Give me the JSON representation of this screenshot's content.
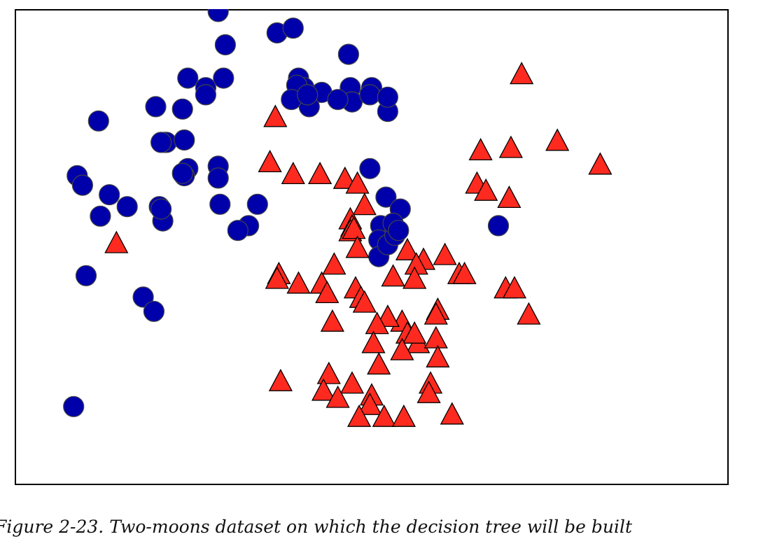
{
  "caption": "Figure 2-23. Two-moons dataset on which the decision tree will be built",
  "chart_data": {
    "type": "scatter",
    "title": "",
    "xlabel": "",
    "ylabel": "",
    "xlim": [
      -1.5,
      2.5
    ],
    "ylim": [
      -0.75,
      1.25
    ],
    "grid": false,
    "axes_ticks_visible": false,
    "marker_edge_color": "#444444",
    "series": [
      {
        "class": 0,
        "marker": "circle",
        "color": "#0000aa",
        "points": [
          [
            -0.36,
            1.24
          ],
          [
            -0.03,
            1.15
          ],
          [
            0.06,
            1.17
          ],
          [
            -0.32,
            1.1
          ],
          [
            0.37,
            1.06
          ],
          [
            -0.53,
            0.96
          ],
          [
            -0.33,
            0.96
          ],
          [
            0.09,
            0.96
          ],
          [
            0.38,
            0.92
          ],
          [
            0.12,
            0.92
          ],
          [
            0.08,
            0.93
          ],
          [
            0.22,
            0.9
          ],
          [
            0.5,
            0.92
          ],
          [
            -0.43,
            0.92
          ],
          [
            -0.43,
            0.89
          ],
          [
            0.15,
            0.84
          ],
          [
            0.39,
            0.86
          ],
          [
            0.49,
            0.89
          ],
          [
            0.59,
            0.82
          ],
          [
            0.59,
            0.88
          ],
          [
            0.05,
            0.87
          ],
          [
            0.14,
            0.89
          ],
          [
            0.31,
            0.87
          ],
          [
            -0.71,
            0.84
          ],
          [
            -0.56,
            0.83
          ],
          [
            -1.03,
            0.78
          ],
          [
            -0.66,
            0.69
          ],
          [
            -0.65,
            0.69
          ],
          [
            -0.68,
            0.69
          ],
          [
            -0.55,
            0.7
          ],
          [
            -0.53,
            0.58
          ],
          [
            -0.55,
            0.55
          ],
          [
            -0.56,
            0.56
          ],
          [
            -0.36,
            0.59
          ],
          [
            -1.15,
            0.55
          ],
          [
            -1.12,
            0.51
          ],
          [
            -0.97,
            0.47
          ],
          [
            -0.36,
            0.54
          ],
          [
            0.49,
            0.58
          ],
          [
            0.58,
            0.46
          ],
          [
            0.66,
            0.41
          ],
          [
            -0.35,
            0.43
          ],
          [
            -0.14,
            0.43
          ],
          [
            -0.87,
            0.42
          ],
          [
            -0.69,
            0.42
          ],
          [
            -0.67,
            0.36
          ],
          [
            -0.68,
            0.41
          ],
          [
            0.55,
            0.34
          ],
          [
            0.63,
            0.31
          ],
          [
            0.54,
            0.28
          ],
          [
            1.21,
            0.34
          ],
          [
            -1.1,
            0.13
          ],
          [
            -0.78,
            0.04
          ],
          [
            -0.72,
            -0.02
          ],
          [
            -1.17,
            -0.42
          ],
          [
            0.54,
            0.21
          ],
          [
            0.59,
            0.26
          ],
          [
            0.63,
            0.3
          ],
          [
            0.62,
            0.35
          ],
          [
            0.65,
            0.32
          ],
          [
            -0.19,
            0.34
          ],
          [
            -0.25,
            0.32
          ],
          [
            -1.02,
            0.38
          ]
        ]
      },
      {
        "class": 1,
        "marker": "triangle",
        "color": "#ff2a1f",
        "points": [
          [
            -0.04,
            0.79
          ],
          [
            1.34,
            0.97
          ],
          [
            1.54,
            0.69
          ],
          [
            1.28,
            0.66
          ],
          [
            1.11,
            0.65
          ],
          [
            1.78,
            0.59
          ],
          [
            -0.07,
            0.6
          ],
          [
            0.06,
            0.55
          ],
          [
            0.21,
            0.55
          ],
          [
            0.35,
            0.53
          ],
          [
            0.42,
            0.51
          ],
          [
            1.09,
            0.51
          ],
          [
            1.14,
            0.48
          ],
          [
            0.46,
            0.42
          ],
          [
            0.38,
            0.36
          ],
          [
            0.39,
            0.33
          ],
          [
            0.38,
            0.31
          ],
          [
            0.4,
            0.32
          ],
          [
            0.29,
            0.17
          ],
          [
            0.42,
            0.24
          ],
          [
            -0.93,
            0.26
          ],
          [
            0.7,
            0.23
          ],
          [
            0.91,
            0.21
          ],
          [
            0.79,
            0.19
          ],
          [
            0.75,
            0.17
          ],
          [
            0.99,
            0.13
          ],
          [
            1.02,
            0.13
          ],
          [
            -0.02,
            0.13
          ],
          [
            -0.03,
            0.11
          ],
          [
            0.62,
            0.12
          ],
          [
            0.74,
            0.11
          ],
          [
            0.22,
            0.09
          ],
          [
            0.09,
            0.09
          ],
          [
            1.25,
            0.07
          ],
          [
            1.3,
            0.07
          ],
          [
            0.25,
            0.05
          ],
          [
            0.41,
            0.07
          ],
          [
            0.44,
            0.03
          ],
          [
            0.46,
            0.01
          ],
          [
            0.87,
            -0.02
          ],
          [
            1.38,
            -0.04
          ],
          [
            0.86,
            -0.04
          ],
          [
            0.67,
            -0.07
          ],
          [
            0.59,
            -0.05
          ],
          [
            0.28,
            -0.07
          ],
          [
            0.53,
            -0.08
          ],
          [
            0.7,
            -0.12
          ],
          [
            0.51,
            -0.16
          ],
          [
            0.76,
            -0.16
          ],
          [
            0.74,
            -0.12
          ],
          [
            0.86,
            -0.14
          ],
          [
            0.67,
            -0.19
          ],
          [
            0.87,
            -0.22
          ],
          [
            0.54,
            -0.25
          ],
          [
            0.83,
            -0.33
          ],
          [
            0.39,
            -0.33
          ],
          [
            -0.01,
            -0.32
          ],
          [
            0.26,
            -0.29
          ],
          [
            0.82,
            -0.37
          ],
          [
            0.23,
            -0.36
          ],
          [
            0.31,
            -0.39
          ],
          [
            0.5,
            -0.38
          ],
          [
            0.49,
            -0.42
          ],
          [
            0.57,
            -0.47
          ],
          [
            0.68,
            -0.47
          ],
          [
            0.95,
            -0.46
          ],
          [
            0.43,
            -0.47
          ],
          [
            1.27,
            0.45
          ]
        ]
      }
    ]
  }
}
